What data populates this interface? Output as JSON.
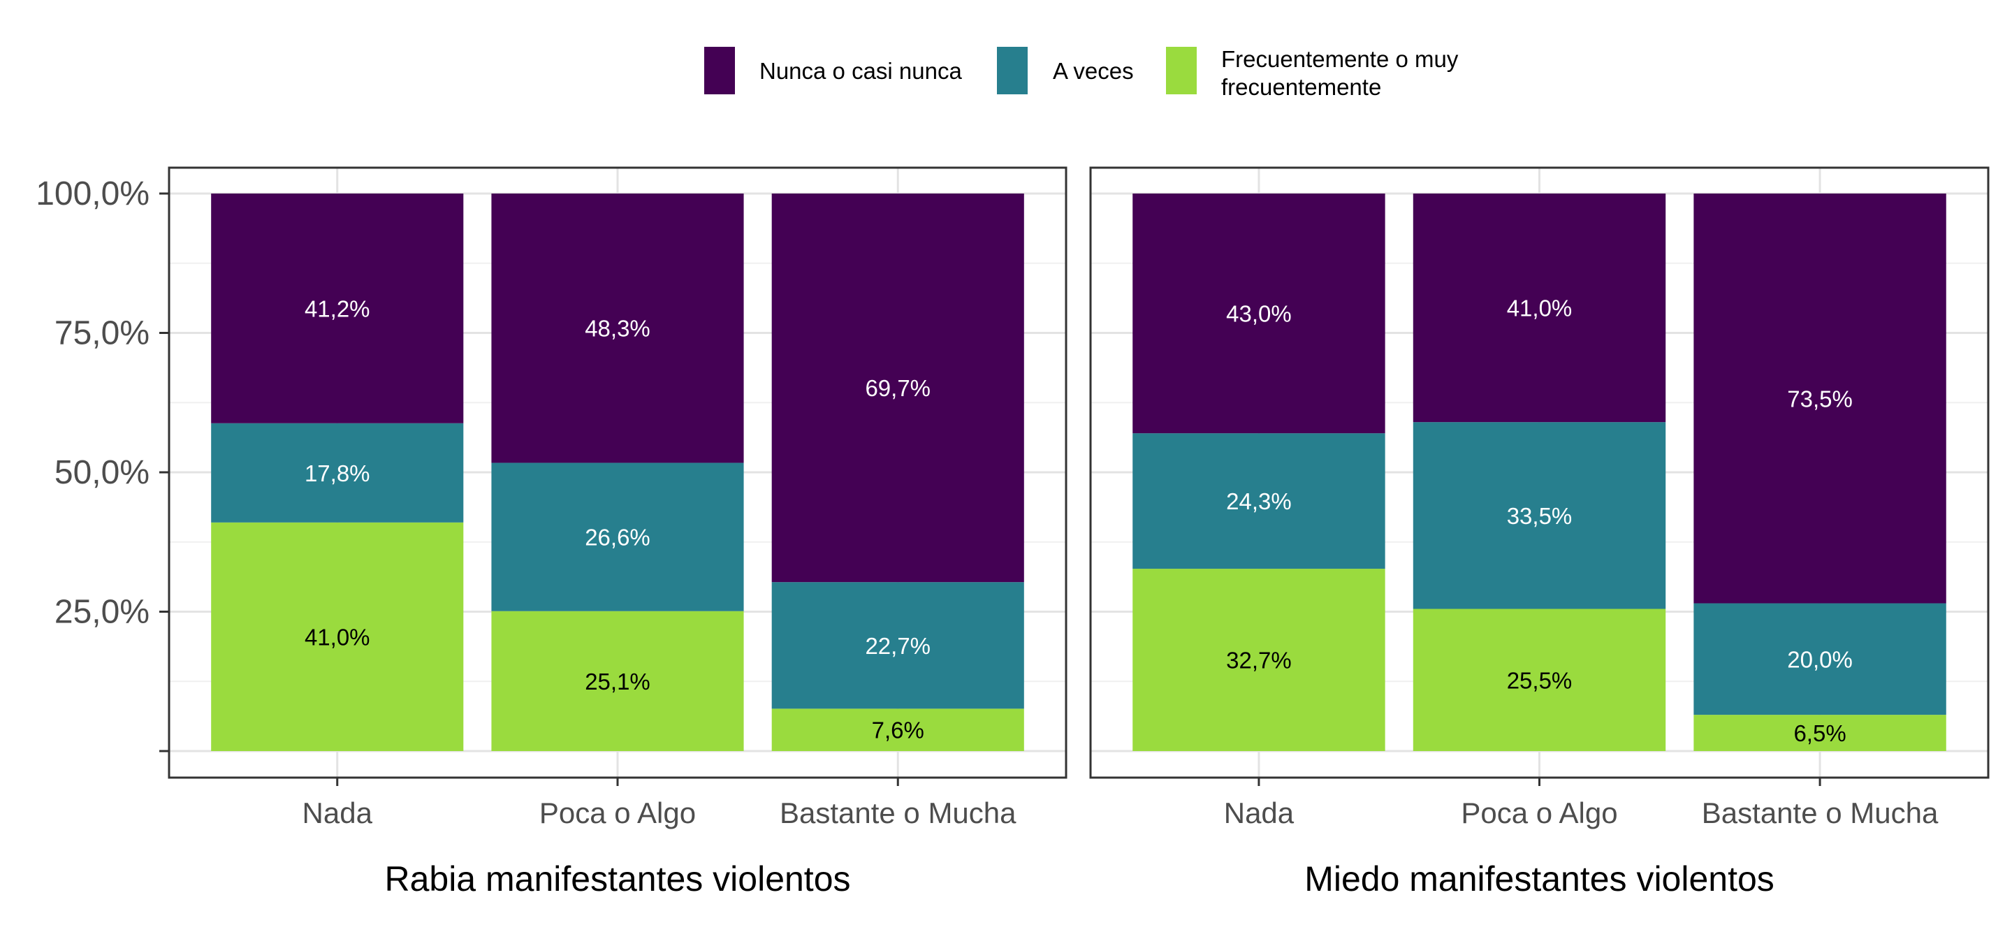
{
  "legend": [
    {
      "label": "Nunca o casi nunca",
      "color": "#440154"
    },
    {
      "label": "A veces",
      "color": "#277F8E"
    },
    {
      "label": "Frecuentemente o muy frecuentemente",
      "label_lines": [
        "Frecuentemente o muy",
        "frecuentemente"
      ],
      "color": "#9ADB3E"
    }
  ],
  "chart_data": [
    {
      "type": "bar",
      "stacked": true,
      "xlabel": "Rabia manifestantes violentos",
      "categories": [
        "Nada",
        "Poca o Algo",
        "Bastante o Mucha"
      ],
      "series": [
        {
          "name": "Frecuentemente o muy frecuentemente",
          "values": [
            41.0,
            25.1,
            7.6
          ],
          "labels": [
            "41,0%",
            "25,1%",
            "7,6%"
          ]
        },
        {
          "name": "A veces",
          "values": [
            17.8,
            26.6,
            22.7
          ],
          "labels": [
            "17,8%",
            "26,6%",
            "22,7%"
          ]
        },
        {
          "name": "Nunca o casi nunca",
          "values": [
            41.2,
            48.3,
            69.7
          ],
          "labels": [
            "41,2%",
            "48,3%",
            "69,7%"
          ]
        }
      ],
      "ylim": [
        0,
        100
      ],
      "yticks": [
        25,
        50,
        75,
        100
      ],
      "ytick_labels": [
        "25,0%",
        "50,0%",
        "75,0%",
        "100,0%"
      ],
      "grid": true
    },
    {
      "type": "bar",
      "stacked": true,
      "xlabel": "Miedo manifestantes violentos",
      "categories": [
        "Nada",
        "Poca o Algo",
        "Bastante o Mucha"
      ],
      "series": [
        {
          "name": "Frecuentemente o muy frecuentemente",
          "values": [
            32.7,
            25.5,
            6.5
          ],
          "labels": [
            "32,7%",
            "25,5%",
            "6,5%"
          ]
        },
        {
          "name": "A veces",
          "values": [
            24.3,
            33.5,
            20.0
          ],
          "labels": [
            "24,3%",
            "33,5%",
            "20,0%"
          ]
        },
        {
          "name": "Nunca o casi nunca",
          "values": [
            43.0,
            41.0,
            73.5
          ],
          "labels": [
            "43,0%",
            "41,0%",
            "73,5%"
          ]
        }
      ],
      "ylim": [
        0,
        100
      ],
      "grid": true
    }
  ]
}
